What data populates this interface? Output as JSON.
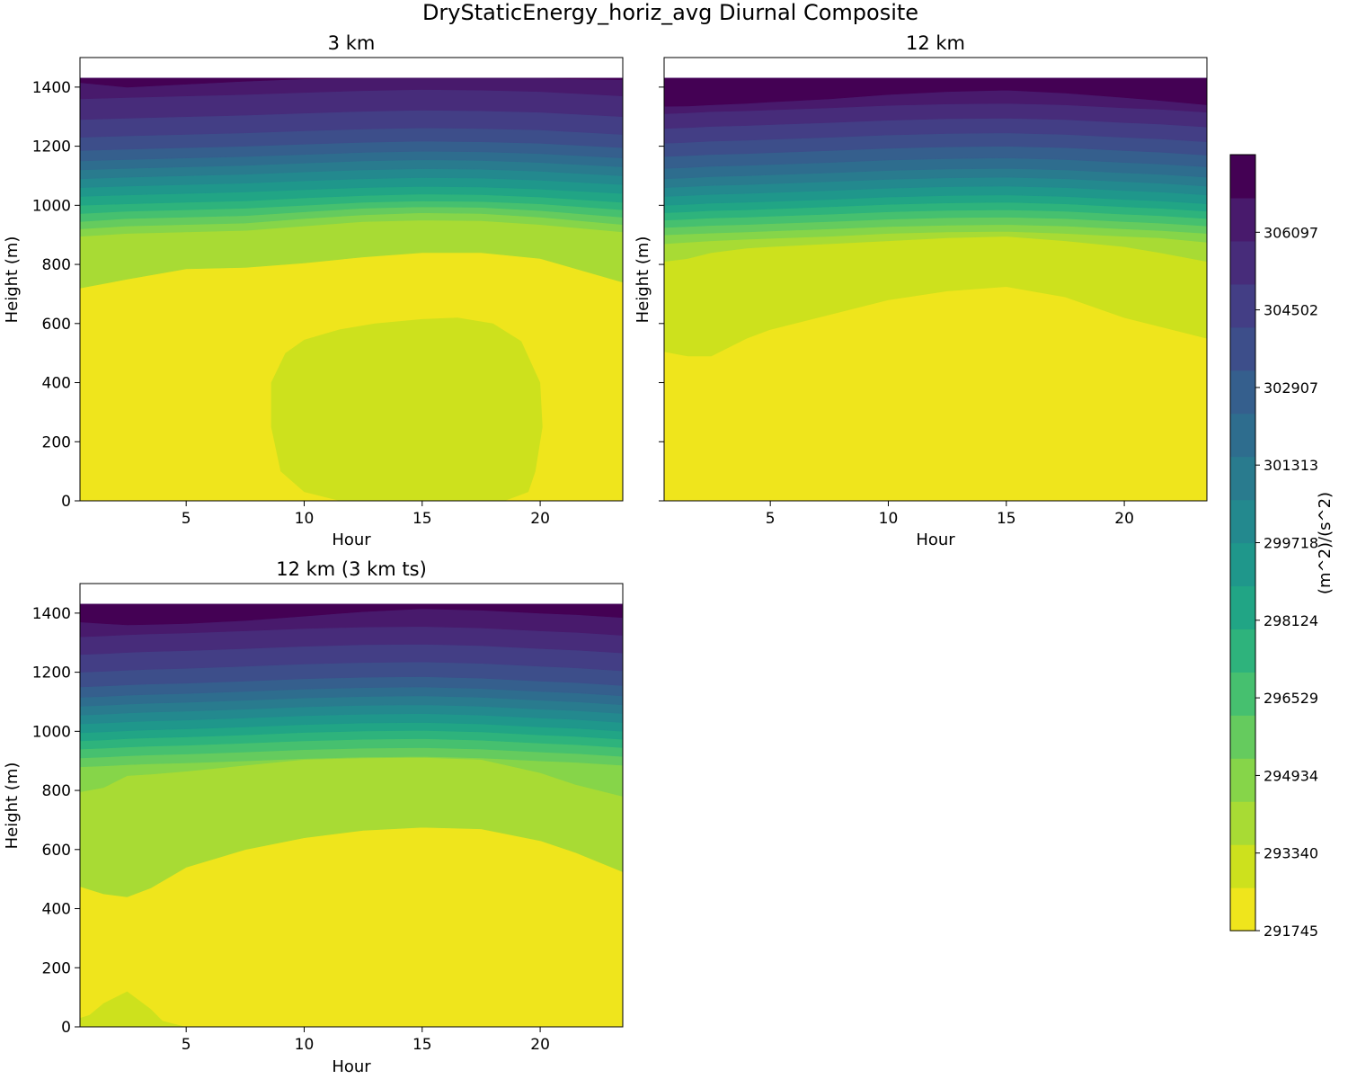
{
  "figure_title": "DryStaticEnergy_horiz_avg Diurnal Composite",
  "colors": {
    "levels": [
      "#efe51c",
      "#cde11d",
      "#a8db34",
      "#86d549",
      "#65cb5e",
      "#46c06f",
      "#2eb37c",
      "#21a585",
      "#1f978b",
      "#23898e",
      "#297b8e",
      "#2e6d8e",
      "#355f8d",
      "#3d4e8a",
      "#433e85",
      "#472c7a",
      "#481a6c",
      "#440154"
    ]
  },
  "colorbar": {
    "label": "(m^2)/(s^2)",
    "min": 291745,
    "max": 307692,
    "n_levels": 18,
    "tick_labels": [
      "291745",
      "293340",
      "294934",
      "296529",
      "298124",
      "299718",
      "301313",
      "302907",
      "304502",
      "306097"
    ]
  },
  "panels": [
    {
      "title": "3 km",
      "xlabel": "Hour",
      "ylabel": "Height (m)",
      "xticks": [
        "5",
        "10",
        "15",
        "20"
      ],
      "yticks": [
        "0",
        "200",
        "400",
        "600",
        "800",
        "1000",
        "1200",
        "1400"
      ]
    },
    {
      "title": "12 km",
      "xlabel": "Hour",
      "ylabel": "Height (m)",
      "xticks": [
        "5",
        "10",
        "15",
        "20"
      ],
      "yticks": [
        "0",
        "200",
        "400",
        "600",
        "800",
        "1000",
        "1200",
        "1400"
      ]
    },
    {
      "title": "12 km (3 km ts)",
      "xlabel": "Hour",
      "ylabel": "Height (m)",
      "xticks": [
        "5",
        "10",
        "15",
        "20"
      ],
      "yticks": [
        "0",
        "200",
        "400",
        "600",
        "800",
        "1000",
        "1200",
        "1400"
      ]
    }
  ],
  "chart_data": [
    {
      "type": "contourf",
      "title": "3 km",
      "xlabel": "Hour",
      "ylabel": "Height (m)",
      "xlim": [
        0.5,
        23.5
      ],
      "ylim": [
        0,
        1500
      ],
      "data_top": 1430,
      "x": [
        0.5,
        2.5,
        5,
        7.5,
        10,
        12.5,
        15,
        17.5,
        20,
        23.5
      ],
      "boundaries": [
        {
          "from_level": 0,
          "to_level": 1,
          "closed": true,
          "x": [
            11.5,
            10,
            9,
            8.6,
            8.6,
            9.2,
            10,
            11.5,
            13,
            15,
            16.5,
            18,
            19.2,
            20,
            20.1,
            19.8,
            19.5,
            18.5
          ],
          "y": [
            0,
            30,
            100,
            250,
            400,
            500,
            545,
            580,
            600,
            615,
            620,
            600,
            540,
            400,
            250,
            100,
            30,
            0
          ]
        },
        {
          "from_level": 1,
          "to_level": 2,
          "y": [
            720,
            750,
            785,
            790,
            805,
            825,
            840,
            840,
            820,
            740
          ]
        },
        {
          "from_level": 2,
          "to_level": 3,
          "y": [
            895,
            905,
            910,
            915,
            930,
            945,
            950,
            948,
            935,
            910
          ]
        },
        {
          "from_level": 3,
          "to_level": 4,
          "y": [
            920,
            930,
            935,
            940,
            955,
            968,
            975,
            972,
            960,
            935
          ]
        },
        {
          "from_level": 4,
          "to_level": 5,
          "y": [
            945,
            955,
            960,
            965,
            978,
            990,
            995,
            993,
            982,
            960
          ]
        },
        {
          "from_level": 5,
          "to_level": 6,
          "y": [
            972,
            980,
            985,
            990,
            1000,
            1010,
            1015,
            1013,
            1005,
            985
          ]
        },
        {
          "from_level": 6,
          "to_level": 7,
          "y": [
            1000,
            1005,
            1010,
            1015,
            1025,
            1033,
            1038,
            1036,
            1028,
            1010
          ]
        },
        {
          "from_level": 7,
          "to_level": 8,
          "y": [
            1030,
            1035,
            1040,
            1045,
            1053,
            1060,
            1064,
            1062,
            1055,
            1040
          ]
        },
        {
          "from_level": 8,
          "to_level": 9,
          "y": [
            1060,
            1065,
            1070,
            1075,
            1083,
            1090,
            1094,
            1092,
            1085,
            1070
          ]
        },
        {
          "from_level": 9,
          "to_level": 10,
          "y": [
            1090,
            1095,
            1100,
            1105,
            1113,
            1120,
            1124,
            1122,
            1115,
            1100
          ]
        },
        {
          "from_level": 10,
          "to_level": 11,
          "y": [
            1120,
            1125,
            1130,
            1135,
            1143,
            1150,
            1154,
            1152,
            1145,
            1130
          ]
        },
        {
          "from_level": 11,
          "to_level": 12,
          "y": [
            1150,
            1155,
            1160,
            1165,
            1172,
            1179,
            1183,
            1181,
            1175,
            1160
          ]
        },
        {
          "from_level": 12,
          "to_level": 13,
          "y": [
            1185,
            1190,
            1195,
            1200,
            1207,
            1213,
            1217,
            1215,
            1210,
            1195
          ]
        },
        {
          "from_level": 13,
          "to_level": 14,
          "y": [
            1230,
            1235,
            1240,
            1245,
            1252,
            1258,
            1262,
            1260,
            1255,
            1240
          ]
        },
        {
          "from_level": 14,
          "to_level": 15,
          "y": [
            1290,
            1295,
            1300,
            1305,
            1312,
            1318,
            1322,
            1320,
            1315,
            1300
          ]
        },
        {
          "from_level": 15,
          "to_level": 16,
          "y": [
            1360,
            1365,
            1370,
            1375,
            1382,
            1388,
            1392,
            1390,
            1385,
            1370
          ]
        },
        {
          "from_level": 16,
          "to_level": 17,
          "y": [
            1415,
            1400,
            1410,
            1420,
            1428,
            1430,
            1430,
            1430,
            1430,
            1425
          ]
        }
      ]
    },
    {
      "type": "contourf",
      "title": "12 km",
      "xlabel": "Hour",
      "ylabel": "Height (m)",
      "xlim": [
        0.5,
        23.5
      ],
      "ylim": [
        0,
        1500
      ],
      "data_top": 1430,
      "x": [
        0.5,
        1.5,
        2.5,
        4,
        5,
        7.5,
        10,
        12.5,
        15,
        17.5,
        20,
        21.5,
        23.5
      ],
      "boundaries": [
        {
          "from_level": 0,
          "to_level": 1,
          "y": [
            505,
            490,
            490,
            550,
            580,
            630,
            680,
            710,
            725,
            690,
            620,
            590,
            550
          ]
        },
        {
          "from_level": 1,
          "to_level": 2,
          "y": [
            810,
            820,
            840,
            855,
            860,
            870,
            880,
            890,
            895,
            880,
            860,
            840,
            810
          ]
        },
        {
          "from_level": 2,
          "to_level": 3,
          "y": [
            870,
            875,
            880,
            885,
            888,
            895,
            905,
            910,
            912,
            905,
            895,
            890,
            875
          ]
        },
        {
          "from_level": 3,
          "to_level": 4,
          "y": [
            900,
            903,
            906,
            910,
            913,
            920,
            928,
            933,
            935,
            930,
            920,
            915,
            905
          ]
        },
        {
          "from_level": 4,
          "to_level": 5,
          "y": [
            925,
            928,
            932,
            935,
            938,
            945,
            953,
            958,
            960,
            955,
            945,
            940,
            930
          ]
        },
        {
          "from_level": 5,
          "to_level": 6,
          "y": [
            950,
            953,
            957,
            960,
            963,
            970,
            978,
            983,
            985,
            980,
            970,
            965,
            955
          ]
        },
        {
          "from_level": 6,
          "to_level": 7,
          "y": [
            975,
            978,
            982,
            985,
            988,
            995,
            1003,
            1008,
            1010,
            1005,
            995,
            990,
            980
          ]
        },
        {
          "from_level": 7,
          "to_level": 8,
          "y": [
            1000,
            1003,
            1007,
            1010,
            1013,
            1020,
            1028,
            1033,
            1035,
            1030,
            1020,
            1015,
            1005
          ]
        },
        {
          "from_level": 8,
          "to_level": 9,
          "y": [
            1030,
            1033,
            1037,
            1040,
            1043,
            1050,
            1058,
            1063,
            1065,
            1060,
            1050,
            1045,
            1035
          ]
        },
        {
          "from_level": 9,
          "to_level": 10,
          "y": [
            1060,
            1063,
            1067,
            1070,
            1073,
            1080,
            1088,
            1093,
            1095,
            1090,
            1080,
            1075,
            1065
          ]
        },
        {
          "from_level": 10,
          "to_level": 11,
          "y": [
            1090,
            1093,
            1097,
            1100,
            1103,
            1110,
            1118,
            1123,
            1125,
            1120,
            1110,
            1105,
            1095
          ]
        },
        {
          "from_level": 11,
          "to_level": 12,
          "y": [
            1125,
            1128,
            1132,
            1135,
            1138,
            1145,
            1153,
            1158,
            1160,
            1155,
            1145,
            1140,
            1130
          ]
        },
        {
          "from_level": 12,
          "to_level": 13,
          "y": [
            1165,
            1168,
            1172,
            1175,
            1178,
            1185,
            1193,
            1198,
            1200,
            1195,
            1185,
            1180,
            1170
          ]
        },
        {
          "from_level": 13,
          "to_level": 14,
          "y": [
            1210,
            1213,
            1217,
            1220,
            1223,
            1230,
            1238,
            1243,
            1245,
            1240,
            1230,
            1225,
            1215
          ]
        },
        {
          "from_level": 14,
          "to_level": 15,
          "y": [
            1260,
            1263,
            1267,
            1270,
            1273,
            1280,
            1288,
            1293,
            1295,
            1290,
            1280,
            1275,
            1265
          ]
        },
        {
          "from_level": 15,
          "to_level": 16,
          "y": [
            1310,
            1313,
            1317,
            1320,
            1323,
            1330,
            1338,
            1343,
            1345,
            1340,
            1330,
            1325,
            1315
          ]
        },
        {
          "from_level": 16,
          "to_level": 17,
          "y": [
            1335,
            1336,
            1340,
            1345,
            1350,
            1360,
            1375,
            1385,
            1390,
            1380,
            1365,
            1355,
            1340
          ]
        }
      ]
    },
    {
      "type": "contourf",
      "title": "12 km (3 km ts)",
      "xlabel": "Hour",
      "ylabel": "Height (m)",
      "xlim": [
        0.5,
        23.5
      ],
      "ylim": [
        0,
        1500
      ],
      "data_top": 1430,
      "x": [
        0.5,
        1.5,
        2.5,
        3.5,
        5,
        7.5,
        10,
        12.5,
        15,
        17.5,
        20,
        21.5,
        23.5
      ],
      "boundaries": [
        {
          "from_level": 0,
          "to_level": 1,
          "closed": true,
          "x": [
            0.5,
            0.5,
            0.9,
            1.5,
            2.5,
            3.5,
            4,
            4.5,
            5
          ],
          "y": [
            0,
            30,
            40,
            80,
            120,
            60,
            20,
            10,
            0
          ]
        },
        {
          "from_level": 1,
          "to_level": 2,
          "y": [
            475,
            450,
            440,
            470,
            540,
            600,
            640,
            665,
            675,
            670,
            630,
            590,
            525
          ]
        },
        {
          "from_level": 2,
          "to_level": 3,
          "y": [
            795,
            810,
            850,
            855,
            865,
            885,
            905,
            910,
            912,
            905,
            860,
            820,
            780
          ]
        },
        {
          "from_level": 3,
          "to_level": 4,
          "y": [
            880,
            883,
            887,
            890,
            893,
            900,
            908,
            913,
            915,
            910,
            900,
            895,
            885
          ]
        },
        {
          "from_level": 4,
          "to_level": 5,
          "y": [
            910,
            913,
            917,
            920,
            923,
            930,
            938,
            943,
            945,
            940,
            930,
            925,
            915
          ]
        },
        {
          "from_level": 5,
          "to_level": 6,
          "y": [
            940,
            943,
            947,
            950,
            953,
            960,
            968,
            973,
            975,
            970,
            960,
            955,
            945
          ]
        },
        {
          "from_level": 6,
          "to_level": 7,
          "y": [
            968,
            971,
            975,
            978,
            981,
            988,
            996,
            1001,
            1003,
            998,
            988,
            983,
            973
          ]
        },
        {
          "from_level": 7,
          "to_level": 8,
          "y": [
            995,
            998,
            1002,
            1005,
            1008,
            1015,
            1023,
            1028,
            1030,
            1025,
            1015,
            1010,
            1000
          ]
        },
        {
          "from_level": 8,
          "to_level": 9,
          "y": [
            1025,
            1028,
            1032,
            1035,
            1038,
            1045,
            1053,
            1058,
            1060,
            1055,
            1045,
            1040,
            1030
          ]
        },
        {
          "from_level": 9,
          "to_level": 10,
          "y": [
            1055,
            1058,
            1062,
            1065,
            1068,
            1075,
            1083,
            1088,
            1090,
            1085,
            1075,
            1070,
            1060
          ]
        },
        {
          "from_level": 10,
          "to_level": 11,
          "y": [
            1085,
            1088,
            1092,
            1095,
            1098,
            1105,
            1113,
            1118,
            1120,
            1115,
            1105,
            1100,
            1090
          ]
        },
        {
          "from_level": 11,
          "to_level": 12,
          "y": [
            1115,
            1118,
            1122,
            1125,
            1128,
            1135,
            1143,
            1148,
            1150,
            1145,
            1135,
            1130,
            1120
          ]
        },
        {
          "from_level": 12,
          "to_level": 13,
          "y": [
            1150,
            1153,
            1157,
            1160,
            1163,
            1170,
            1178,
            1183,
            1185,
            1180,
            1170,
            1165,
            1155
          ]
        },
        {
          "from_level": 13,
          "to_level": 14,
          "y": [
            1200,
            1203,
            1207,
            1210,
            1213,
            1220,
            1228,
            1233,
            1235,
            1230,
            1220,
            1215,
            1205
          ]
        },
        {
          "from_level": 14,
          "to_level": 15,
          "y": [
            1260,
            1263,
            1267,
            1270,
            1273,
            1280,
            1288,
            1293,
            1295,
            1290,
            1280,
            1275,
            1265
          ]
        },
        {
          "from_level": 15,
          "to_level": 16,
          "y": [
            1320,
            1323,
            1327,
            1330,
            1333,
            1340,
            1348,
            1353,
            1355,
            1350,
            1340,
            1335,
            1325
          ]
        },
        {
          "from_level": 16,
          "to_level": 17,
          "y": [
            1370,
            1365,
            1360,
            1362,
            1365,
            1375,
            1390,
            1405,
            1415,
            1410,
            1400,
            1395,
            1385
          ]
        }
      ]
    }
  ]
}
